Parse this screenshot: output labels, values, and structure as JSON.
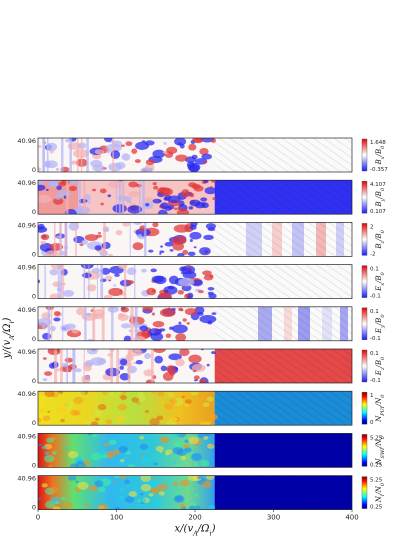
{
  "figure": {
    "y_axis_label": "y/(v_A/Ω_i)",
    "x_axis_label": "x/(v_A/Ω_i)",
    "x_ticks": [
      "0",
      "100",
      "200",
      "300",
      "400"
    ],
    "y_ticks": [
      "40.96",
      "0"
    ]
  },
  "panels": [
    {
      "label": "B_x/B_0",
      "max": "1.648",
      "min": "-0.357",
      "colormap": "bwr"
    },
    {
      "label": "B_y/B_0",
      "max": "4.107",
      "min": "0.107",
      "colormap": "bwr"
    },
    {
      "label": "B_z/B_0",
      "max": "2",
      "min": "-2",
      "colormap": "bwr"
    },
    {
      "label": "E_x/B_0",
      "max": "0.1",
      "min": "-0.1",
      "colormap": "bwr"
    },
    {
      "label": "E_y/B_0",
      "max": "0.1",
      "min": "-0.1",
      "colormap": "bwr"
    },
    {
      "label": "E_z/B_0",
      "max": "0.1",
      "min": "-0.1",
      "colormap": "bwr"
    },
    {
      "label": "N_PUI/N_0",
      "max": "1",
      "min": "0",
      "colormap": "jet"
    },
    {
      "label": "N_SWI/N_0",
      "max": "5.25",
      "min": "0.25",
      "colormap": "jet"
    },
    {
      "label": "N_i/N_0",
      "max": "5.25",
      "min": "0.25",
      "colormap": "jet"
    }
  ],
  "chart_data": {
    "type": "heatmap",
    "xlabel": "x/(v_A/Ω_i)",
    "ylabel": "y/(v_A/Ω_i)",
    "xlim": [
      0,
      400
    ],
    "ylim": [
      0,
      40.96
    ],
    "shock_position_x": 225,
    "series": [
      {
        "name": "B_x/B_0",
        "range": [
          -0.357,
          1.648
        ]
      },
      {
        "name": "B_y/B_0",
        "range": [
          0.107,
          4.107
        ]
      },
      {
        "name": "B_z/B_0",
        "range": [
          -2,
          2
        ]
      },
      {
        "name": "E_x/B_0",
        "range": [
          -0.1,
          0.1
        ]
      },
      {
        "name": "E_y/B_0",
        "range": [
          -0.1,
          0.1
        ]
      },
      {
        "name": "E_z/B_0",
        "range": [
          -0.1,
          0.1
        ]
      },
      {
        "name": "N_PUI/N_0",
        "range": [
          0,
          1
        ]
      },
      {
        "name": "N_SWI/N_0",
        "range": [
          0.25,
          5.25
        ]
      },
      {
        "name": "N_i/N_0",
        "range": [
          0.25,
          5.25
        ]
      }
    ]
  }
}
